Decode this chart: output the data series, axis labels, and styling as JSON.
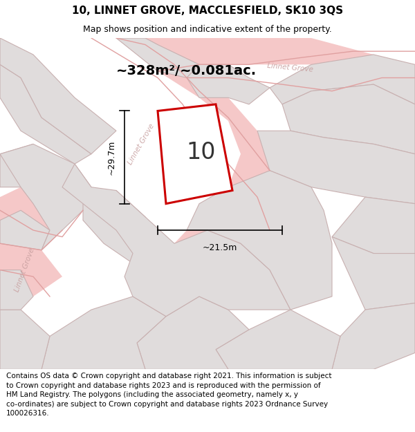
{
  "title": "10, LINNET GROVE, MACCLESFIELD, SK10 3QS",
  "subtitle": "Map shows position and indicative extent of the property.",
  "footer_text": "Contains OS data © Crown copyright and database right 2021. This information is subject\nto Crown copyright and database rights 2023 and is reproduced with the permission of\nHM Land Registry. The polygons (including the associated geometry, namely x, y\nco-ordinates) are subject to Crown copyright and database rights 2023 Ordnance Survey\n100026316.",
  "area_text": "~328m²/~0.081ac.",
  "number_label": "10",
  "dim_width": "~21.5m",
  "dim_height": "~29.7m",
  "map_bg": "#eeecec",
  "parcel_fc": "#e0dcdc",
  "parcel_edge": "#c8b0b0",
  "road_fc": "#f5c8c8",
  "highlight_fc": "#ffffff",
  "highlight_edge": "#cc0000",
  "road_label_color": "#c8a0a0",
  "title_fontsize": 11,
  "subtitle_fontsize": 9,
  "footer_fontsize": 7.5,
  "area_fontsize": 14,
  "number_fontsize": 24,
  "dim_fontsize": 9,
  "road_label_fontsize": 7.5
}
